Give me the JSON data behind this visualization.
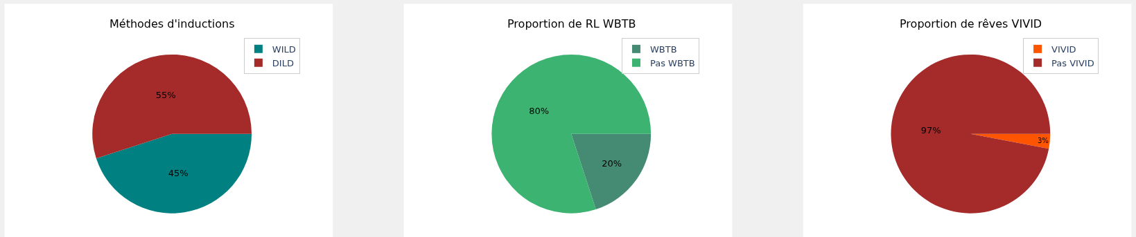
{
  "chart_data": [
    {
      "type": "pie",
      "title": "Méthodes d'inductions",
      "categories": [
        "WILD",
        "DILD"
      ],
      "values": [
        45,
        55
      ],
      "colors": [
        "#008080",
        "#a52a2a"
      ],
      "value_labels": [
        "45%",
        "55%"
      ],
      "legend": "top right"
    },
    {
      "type": "pie",
      "title": "Proportion de RL WBTB",
      "categories": [
        "WBTB",
        "Pas WBTB"
      ],
      "values": [
        20,
        80
      ],
      "colors": [
        "#458b74",
        "#3cb371"
      ],
      "value_labels": [
        "20%",
        "80%"
      ],
      "legend": "top right"
    },
    {
      "type": "pie",
      "title": "Proportion de rêves VIVID",
      "categories": [
        "VIVID",
        "Pas VIVID"
      ],
      "values": [
        3,
        97
      ],
      "colors": [
        "#ff5500",
        "#a52a2a"
      ],
      "value_labels": [
        "3%",
        "97%"
      ],
      "legend": "top right"
    }
  ]
}
